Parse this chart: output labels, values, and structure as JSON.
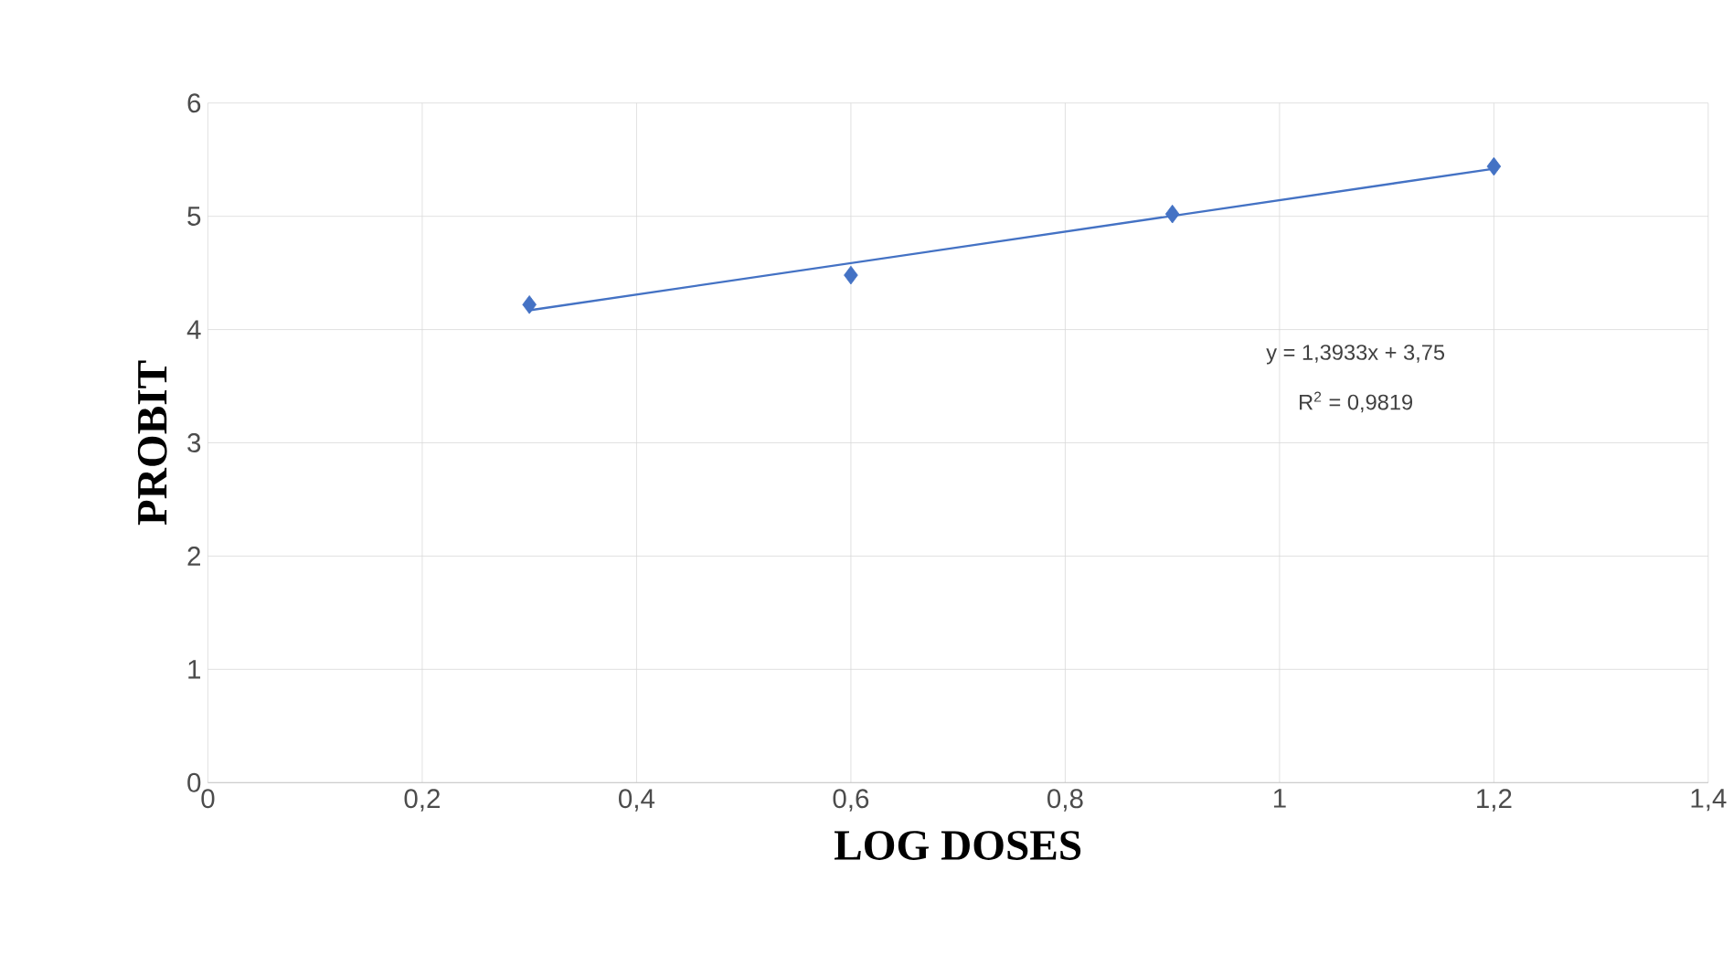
{
  "chart_data": {
    "type": "scatter",
    "xlabel": "LOG DOSES",
    "ylabel": "PROBIT",
    "annotations": [
      "y = 1,3933x + 3,75",
      "R$^{2}$ = 0,9819"
    ],
    "series": [
      {
        "color": "#4472c4",
        "marker": "diamond",
        "x": [
          0.3,
          0.6,
          0.9,
          1.2
        ],
        "values": [
          4.22,
          4.48,
          5.02,
          5.44
        ]
      },
      {
        "type": "line",
        "color": "#4472c4",
        "marker": "none",
        "line_style": "solid",
        "x": [
          0.3,
          1.2
        ],
        "values": [
          4.17,
          5.42
        ]
      }
    ],
    "xlim": [
      0,
      1.4
    ],
    "ylim": [
      0,
      6
    ],
    "xticks": [
      0,
      {
        "value": 0.2,
        "label": "0,2"
      },
      {
        "value": 0.4,
        "label": "0,4"
      },
      {
        "value": 0.6,
        "label": "0,6"
      },
      {
        "value": 0.8,
        "label": "0,8"
      },
      1,
      {
        "value": 1.2,
        "label": "1,2"
      },
      {
        "value": 1.4,
        "label": "1,4"
      }
    ],
    "yticks": [
      0,
      1,
      2,
      3,
      4,
      5,
      6
    ],
    "grid": true
  }
}
